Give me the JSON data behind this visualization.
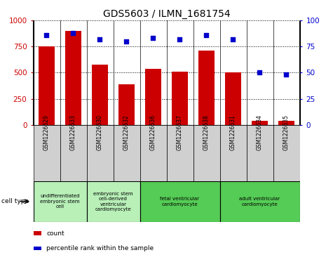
{
  "title": "GDS5603 / ILMN_1681754",
  "samples": [
    "GSM1226629",
    "GSM1226633",
    "GSM1226630",
    "GSM1226632",
    "GSM1226636",
    "GSM1226637",
    "GSM1226638",
    "GSM1226631",
    "GSM1226634",
    "GSM1226635"
  ],
  "counts": [
    750,
    900,
    580,
    390,
    540,
    510,
    710,
    500,
    40,
    40
  ],
  "percentiles": [
    86,
    88,
    82,
    80,
    83,
    82,
    86,
    82,
    50,
    48
  ],
  "bar_color": "#cc0000",
  "dot_color": "#0000cc",
  "ylim_left": [
    0,
    1000
  ],
  "ylim_right": [
    0,
    100
  ],
  "yticks_left": [
    0,
    250,
    500,
    750,
    1000
  ],
  "yticks_right": [
    0,
    25,
    50,
    75,
    100
  ],
  "cell_types": [
    {
      "label": "undifferentiated\nembryonic stem\ncell",
      "span": [
        0,
        2
      ],
      "color": "#b8f0b8"
    },
    {
      "label": "embryonic stem\ncell-derived\nventricular\ncardiomyocyte",
      "span": [
        2,
        4
      ],
      "color": "#b8f0b8"
    },
    {
      "label": "fetal ventricular\ncardiomyocyte",
      "span": [
        4,
        7
      ],
      "color": "#55cc55"
    },
    {
      "label": "adult ventricular\ncardiomyocyte",
      "span": [
        7,
        10
      ],
      "color": "#55cc55"
    }
  ],
  "legend_count_label": "count",
  "legend_percentile_label": "percentile rank within the sample",
  "cell_type_label": "cell type",
  "sample_box_color": "#d0d0d0",
  "grid_linestyle": "dotted"
}
